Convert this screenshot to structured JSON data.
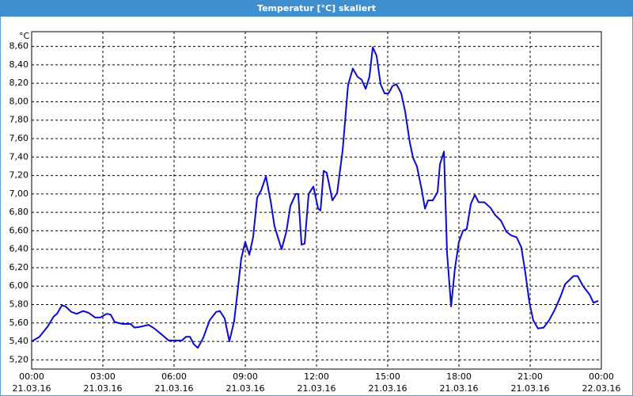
{
  "chart_data": {
    "type": "line",
    "title": "Temperatur [°C] skaliert",
    "y_unit": "°C",
    "color": "#0a0ad0",
    "grid": true,
    "xlim": [
      0,
      24
    ],
    "xticks": [
      {
        "value": 0,
        "label": "00:00",
        "date": "21.03.16"
      },
      {
        "value": 3,
        "label": "03:00",
        "date": "21.03.16"
      },
      {
        "value": 6,
        "label": "06:00",
        "date": "21.03.16"
      },
      {
        "value": 9,
        "label": "09:00",
        "date": "21.03.16"
      },
      {
        "value": 12,
        "label": "12:00",
        "date": "21.03.16"
      },
      {
        "value": 15,
        "label": "15:00",
        "date": "21.03.16"
      },
      {
        "value": 18,
        "label": "18:00",
        "date": "21.03.16"
      },
      {
        "value": 21,
        "label": "21:00",
        "date": "21.03.16"
      },
      {
        "value": 24,
        "label": "00:00",
        "date": "22.03.16"
      }
    ],
    "ylim": [
      5.1,
      8.76
    ],
    "yticks": [
      {
        "value": 5.2,
        "label": "5,20"
      },
      {
        "value": 5.4,
        "label": "5,40"
      },
      {
        "value": 5.6,
        "label": "5,60"
      },
      {
        "value": 5.8,
        "label": "5,80"
      },
      {
        "value": 6.0,
        "label": "6,00"
      },
      {
        "value": 6.2,
        "label": "6,20"
      },
      {
        "value": 6.4,
        "label": "6,40"
      },
      {
        "value": 6.6,
        "label": "6,60"
      },
      {
        "value": 6.8,
        "label": "6,80"
      },
      {
        "value": 7.0,
        "label": "7,00"
      },
      {
        "value": 7.2,
        "label": "7,20"
      },
      {
        "value": 7.4,
        "label": "7,40"
      },
      {
        "value": 7.6,
        "label": "7,60"
      },
      {
        "value": 7.8,
        "label": "7,80"
      },
      {
        "value": 8.0,
        "label": "8,00"
      },
      {
        "value": 8.2,
        "label": "8,20"
      },
      {
        "value": 8.4,
        "label": "8,40"
      },
      {
        "value": 8.6,
        "label": "8,60"
      }
    ],
    "x": [
      0,
      0.33,
      0.67,
      0.93,
      1.07,
      1.27,
      1.43,
      1.67,
      1.9,
      2.17,
      2.4,
      2.67,
      2.9,
      3.17,
      3.33,
      3.5,
      3.83,
      4.17,
      4.33,
      4.6,
      4.93,
      5.17,
      5.5,
      5.77,
      6,
      6.33,
      6.5,
      6.67,
      6.83,
      7,
      7.23,
      7.5,
      7.77,
      7.93,
      8.13,
      8.33,
      8.53,
      8.67,
      8.83,
      9,
      9.17,
      9.33,
      9.5,
      9.67,
      9.87,
      10.07,
      10.23,
      10.53,
      10.73,
      10.9,
      11.13,
      11.23,
      11.37,
      11.5,
      11.67,
      11.87,
      12.07,
      12.17,
      12.3,
      12.43,
      12.67,
      12.87,
      13.1,
      13.33,
      13.53,
      13.73,
      13.9,
      14.07,
      14.23,
      14.37,
      14.53,
      14.7,
      14.87,
      15.03,
      15.2,
      15.37,
      15.57,
      15.73,
      15.93,
      16.07,
      16.23,
      16.43,
      16.57,
      16.7,
      16.9,
      17.1,
      17.2,
      17.37,
      17.5,
      17.67,
      17.83,
      18,
      18.17,
      18.33,
      18.5,
      18.67,
      18.83,
      19.07,
      19.33,
      19.53,
      19.77,
      20,
      20.2,
      20.43,
      20.63,
      20.8,
      20.97,
      21.13,
      21.33,
      21.57,
      21.8,
      22.03,
      22.27,
      22.47,
      22.67,
      22.83,
      23,
      23.23,
      23.5,
      23.67,
      23.87
    ],
    "values": [
      5.4,
      5.45,
      5.56,
      5.67,
      5.7,
      5.79,
      5.78,
      5.72,
      5.7,
      5.73,
      5.71,
      5.66,
      5.66,
      5.7,
      5.69,
      5.61,
      5.59,
      5.59,
      5.55,
      5.56,
      5.58,
      5.54,
      5.47,
      5.41,
      5.41,
      5.41,
      5.45,
      5.45,
      5.37,
      5.33,
      5.44,
      5.63,
      5.72,
      5.73,
      5.65,
      5.4,
      5.62,
      5.93,
      6.3,
      6.48,
      6.34,
      6.53,
      6.96,
      7.04,
      7.19,
      6.92,
      6.65,
      6.4,
      6.59,
      6.87,
      7.0,
      7.0,
      6.45,
      6.46,
      7.0,
      7.08,
      6.84,
      6.82,
      7.25,
      7.23,
      6.93,
      7.01,
      7.47,
      8.18,
      8.36,
      8.27,
      8.24,
      8.14,
      8.27,
      8.59,
      8.5,
      8.19,
      8.09,
      8.09,
      8.17,
      8.19,
      8.09,
      7.9,
      7.56,
      7.39,
      7.3,
      7.05,
      6.84,
      6.93,
      6.93,
      7.02,
      7.32,
      7.46,
      6.36,
      5.78,
      6.19,
      6.48,
      6.6,
      6.62,
      6.89,
      6.99,
      6.91,
      6.91,
      6.85,
      6.77,
      6.71,
      6.59,
      6.55,
      6.53,
      6.42,
      6.14,
      5.82,
      5.63,
      5.54,
      5.55,
      5.63,
      5.74,
      5.88,
      6.02,
      6.07,
      6.11,
      6.11,
      6.0,
      5.91,
      5.82,
      5.84
    ]
  }
}
